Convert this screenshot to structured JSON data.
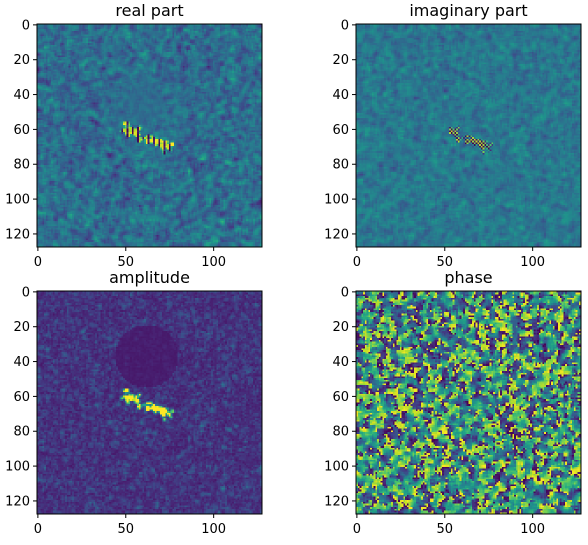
{
  "chart_data": [
    {
      "type": "heatmap",
      "title": "real part",
      "colormap": "viridis",
      "xlim": [
        0,
        127
      ],
      "ylim": [
        127,
        0
      ],
      "xticks": [
        0,
        50,
        100
      ],
      "yticks": [
        0,
        20,
        40,
        60,
        80,
        100,
        120
      ],
      "content": "noise field around 0.3-0.4 of colormap; smoother darker region centered near (60,45); bright yellow-green speckles along diagonal streak from (48,60) to (75,72)"
    },
    {
      "type": "heatmap",
      "title": "imaginary part",
      "colormap": "viridis",
      "xlim": [
        0,
        127
      ],
      "ylim": [
        127,
        0
      ],
      "xticks": [
        0,
        50,
        100
      ],
      "yticks": [
        0,
        20,
        40,
        60,
        80,
        100,
        120
      ],
      "content": "low-contrast teal noise field; few bright and dark speckles near (55,62) to (72,72)"
    },
    {
      "type": "heatmap",
      "title": "amplitude",
      "colormap": "viridis",
      "xlim": [
        0,
        127
      ],
      "ylim": [
        127,
        0
      ],
      "xticks": [
        0,
        50,
        100
      ],
      "yticks": [
        0,
        20,
        40,
        60,
        80,
        100,
        120
      ],
      "content": "dark purple noise; darker disc centered near (62,37) radius ~18; bright speckled crescent below it from (50,58) to (78,73)"
    },
    {
      "type": "heatmap",
      "title": "phase",
      "colormap": "viridis",
      "xlim": [
        0,
        127
      ],
      "ylim": [
        127,
        0
      ],
      "xticks": [
        0,
        50,
        100
      ],
      "yticks": [
        0,
        20,
        40,
        60,
        80,
        100,
        120
      ],
      "content": "random blotchy pattern spanning full colormap: dark purple, teal, green and yellow patches"
    }
  ]
}
